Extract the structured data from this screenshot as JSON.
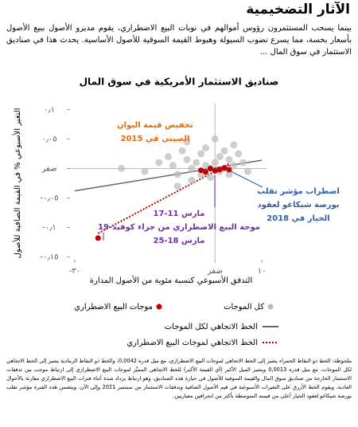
{
  "header": {
    "title": "الآثار التضخيمية"
  },
  "body": "بينما يسحب المستثمرون رؤوس أموالهم في نوبات البيع الاضطراري، يقوم مديرو الأصول ببيع الأصول بأسعار بخسة، مما يسرع نضوب السيولة وهبوط القيمة السوقية للأصول الأساسية. يحدث هذا في صناديق الاستثمار في سوق المال ...",
  "chart_data": {
    "type": "scatter",
    "title": "صناديق الاستثمار الأمريكية في سوق المال",
    "x_label": "التدفق الأسبوعي كنسبة مئوية من الأصول المدارة",
    "y_label": "التغير الأسبوعي % في القيمة الصافية للأصول",
    "xlim": [
      -31,
      11
    ],
    "ylim": [
      -0.16,
      0.11
    ],
    "xticks": [
      {
        "value": -30,
        "label": "٣٠-"
      },
      {
        "value": 0,
        "label": "صفر"
      },
      {
        "value": 10,
        "label": "١٠"
      }
    ],
    "yticks": [
      {
        "value": 0.1,
        "label": "٠٫١"
      },
      {
        "value": 0.05,
        "label": "٠٫٠٥"
      },
      {
        "value": 0,
        "label": "صفر"
      },
      {
        "value": -0.05,
        "label": "٠٫٠٥-"
      },
      {
        "value": -0.1,
        "label": "٠٫١-"
      },
      {
        "value": -0.15,
        "label": "٠٫١٥-"
      }
    ],
    "series": [
      {
        "name": "كل الموجات",
        "color": "#bdbdbd",
        "x": [
          -12,
          -10,
          -9,
          -8,
          -7,
          -6,
          -5,
          -5,
          -4,
          -3,
          -3,
          -2,
          -2,
          -1,
          -1,
          0,
          1,
          1,
          2,
          2,
          3,
          3,
          4,
          5,
          6,
          -15,
          -20,
          -6,
          0,
          4,
          -8,
          7
        ],
        "values": [
          0.01,
          0.02,
          0.005,
          -0.01,
          0.03,
          0.015,
          0,
          -0.02,
          0.01,
          0.025,
          -0.01,
          0.005,
          0.035,
          0,
          -0.015,
          0.01,
          0.02,
          -0.005,
          0.03,
          0,
          0.015,
          -0.01,
          0.005,
          0.025,
          0.01,
          -0.005,
          0,
          0.045,
          0.05,
          0.04,
          -0.03,
          -0.005
        ]
      },
      {
        "name": "موجات البيع الاضطراري",
        "color": "#c00000",
        "x": [
          -25,
          -3,
          -1,
          0,
          1,
          2,
          -2,
          3
        ],
        "values": [
          -0.118,
          -0.003,
          0,
          -0.004,
          -0.002,
          0.001,
          -0.006,
          -0.002
        ]
      }
    ],
    "trend_lines": [
      {
        "name": "الخط الاتجاهي لكل الموجات",
        "color": "#666666",
        "x": [
          -30,
          10
        ],
        "values": [
          -0.038,
          0.014
        ]
      },
      {
        "name": "الخط الاتجاهي لموجات البيع الاضطراري",
        "color": "#c00000",
        "x": [
          -25,
          3
        ],
        "values": [
          -0.11,
          0.008
        ]
      }
    ],
    "annotations": [
      {
        "color": "#e36c09",
        "lines": [
          "تخفيض قيمة اليوان",
          "الصيني في 2015"
        ]
      },
      {
        "color": "#2e5fa8",
        "lines": [
          "اضطراب مؤشر تقلب",
          "بورصة شيكاغو لعقود",
          "الخيار في 2018"
        ]
      },
      {
        "color": "#7030a0",
        "lines": [
          "مارس 11-17",
          "موجة البيع الاضطراري من جراء كوفيد-19",
          "مارس 18-25"
        ]
      }
    ]
  },
  "note": "ملحوظة: الخط ذو النقاط الحمراء يشير إلى الخط الاتجاهي لموجات البيع الاضطراري، مع ميل قدره 0,0042، والخط ذو النقاط الرمادية يشير إلى الخط الاتجاهي لكل الموجات، مع ميل قدره 0,0013 ويشير الميل الأكبر (أي القيمة الأكبر) للخط الاتجاهي المميَّز لموجات البيع الاضطراري إلى ارتباط موجب بين تدفقات الاستثمار الخارجة من صناديق سوق المال والقيمة السوقية للأصول في حيازة هذه الصناديق، وهو ارتباط يزداد شدة أثناء فترات البيع الاضطراري مقارنة بالأحوال العادية. ويقوم الخط الأزرق على التغيرات الأسبوعية في قيم الأصول الصافية وتدفقات الاستثمار من سبتمبر 2021 وإلى الآن. ويتضمن هذه الفترة مؤشر تقلب بورصة شيكاغو لعقود الخيار أعلى من قيمته المتوسطة بأكثر من انحرافين معياريين."
}
